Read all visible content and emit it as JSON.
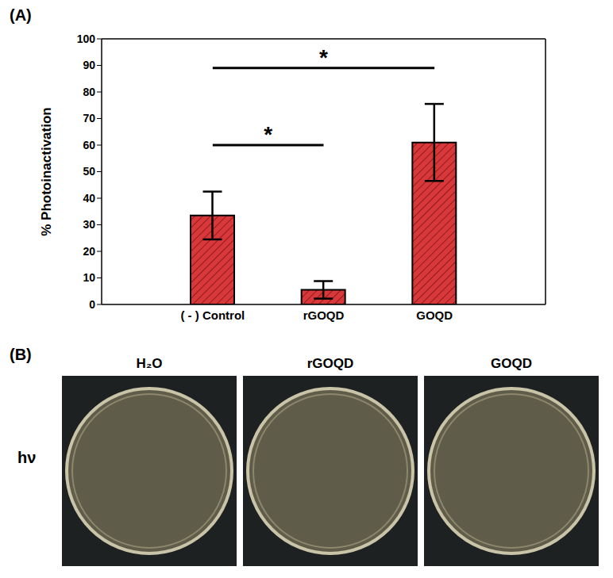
{
  "chart_data": {
    "type": "bar",
    "panel_label": "(A)",
    "y_label": "% Photoinactivation",
    "categories": [
      "( - ) Control",
      "rGOQD",
      "GOQD"
    ],
    "values": [
      33.5,
      5.5,
      61
    ],
    "errors": [
      9,
      3.3,
      14.5
    ],
    "color": "#d9383a",
    "ylim": [
      0,
      100
    ],
    "yticks": [
      0,
      10,
      20,
      30,
      40,
      50,
      60,
      70,
      80,
      90,
      100
    ],
    "grid": false,
    "annotations": [
      {
        "text": "*",
        "x1": "( - ) Control",
        "x2": "rGOQD",
        "y": 60
      },
      {
        "text": "*",
        "x1": "( - ) Control",
        "x2": "GOQD",
        "y": 89
      }
    ]
  },
  "panel_b": {
    "panel_label": "(B)",
    "row_label": "hν",
    "plates": [
      "H₂O",
      "rGOQD",
      "GOQD"
    ]
  }
}
